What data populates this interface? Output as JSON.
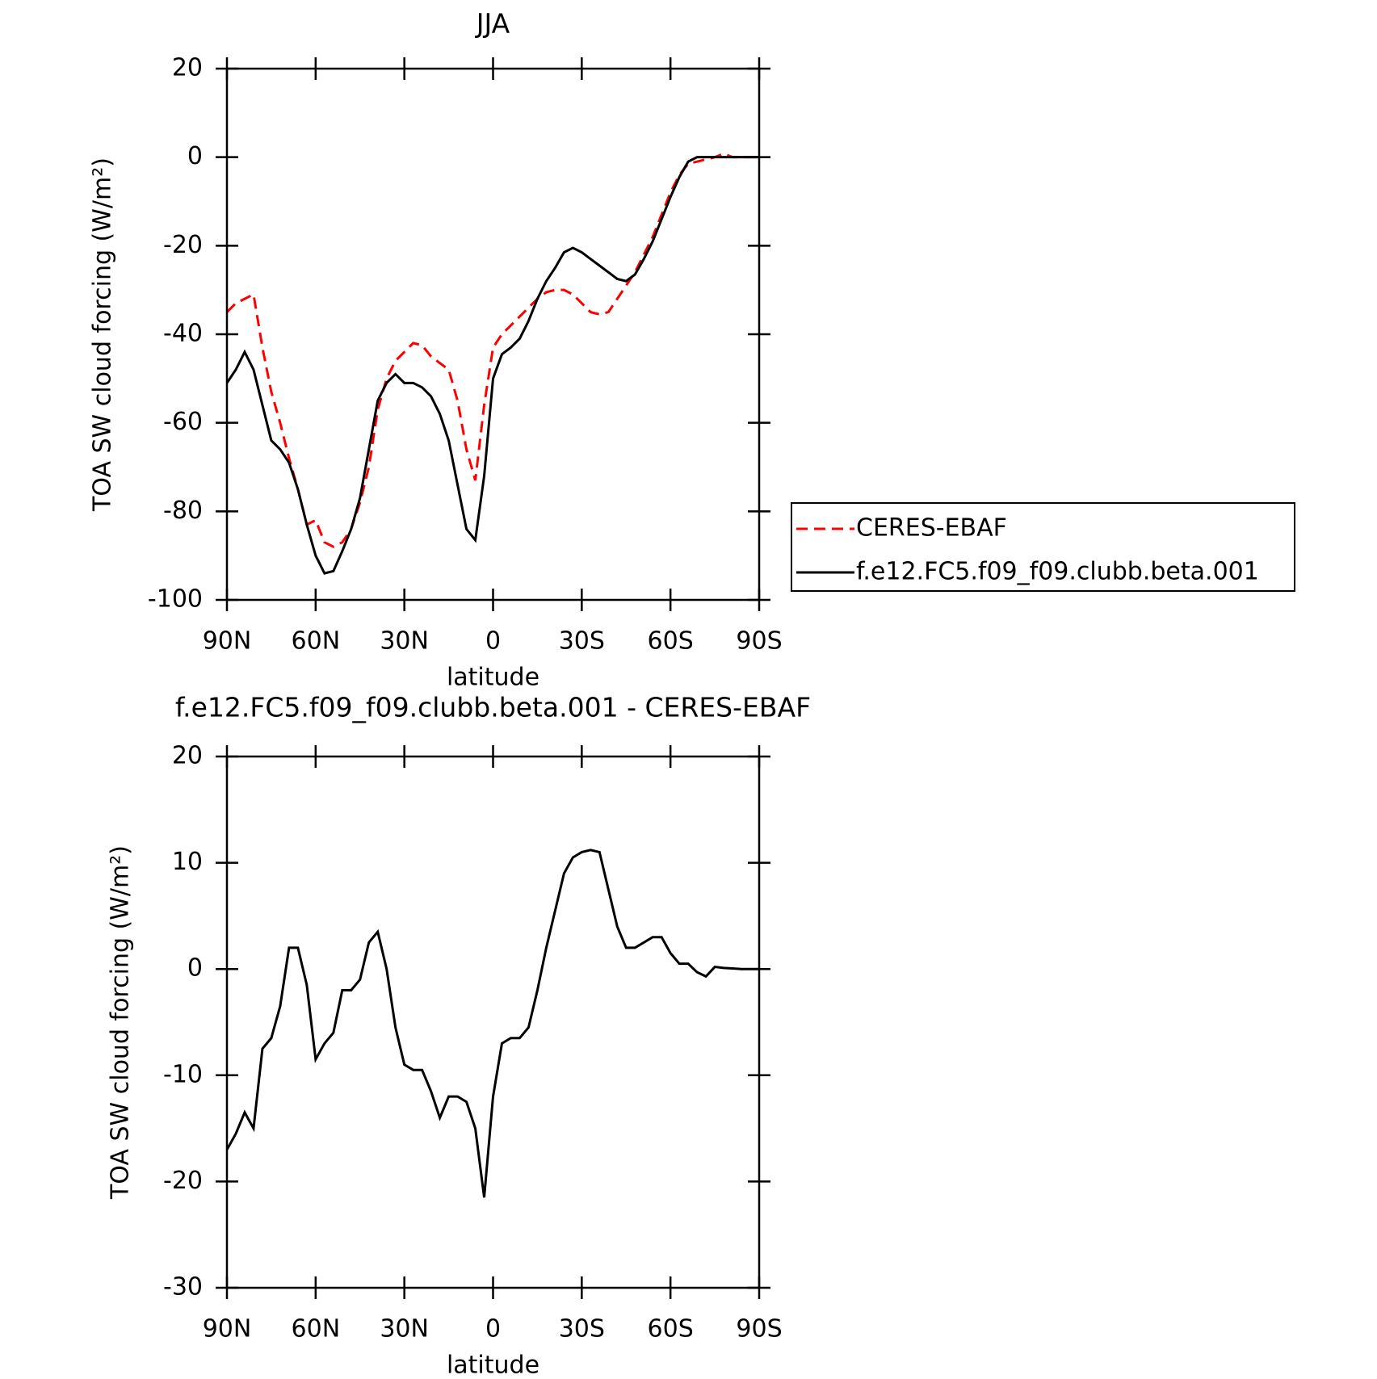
{
  "chart_data": [
    {
      "type": "line",
      "title": "JJA",
      "xlabel": "latitude",
      "ylabel": "TOA SW cloud forcing (W/m²)",
      "x": [
        90,
        87,
        84,
        81,
        78,
        75,
        72,
        69,
        66,
        63,
        60,
        57,
        54,
        51,
        48,
        45,
        42,
        39,
        36,
        33,
        30,
        27,
        24,
        21,
        18,
        15,
        12,
        9,
        6,
        3,
        0,
        -3,
        -6,
        -9,
        -12,
        -15,
        -18,
        -21,
        -24,
        -27,
        -30,
        -33,
        -36,
        -39,
        -42,
        -45,
        -48,
        -51,
        -54,
        -57,
        -60,
        -63,
        -66,
        -69,
        -72,
        -75,
        -78,
        -81,
        -84,
        -87,
        -90
      ],
      "series": [
        {
          "name": "CERES-EBAF",
          "color": "#ff0000",
          "style": "dashed",
          "values": [
            -35,
            -33,
            -32,
            -31,
            -43,
            -53,
            -60,
            -68,
            -75,
            -83,
            -82,
            -87,
            -88,
            -87,
            -84,
            -78,
            -70,
            -57,
            -50,
            -46,
            -44,
            -42,
            -42.5,
            -45,
            -46.5,
            -48,
            -55,
            -66,
            -73,
            -56,
            -43,
            -40,
            -38,
            -36,
            -34,
            -32,
            -30.5,
            -30,
            -30,
            -31,
            -33,
            -35,
            -35.5,
            -35,
            -32,
            -29,
            -26,
            -22,
            -18,
            -13,
            -8,
            -4,
            -1.5,
            -1,
            -0.5,
            0,
            0.8,
            0,
            0,
            0,
            0
          ]
        },
        {
          "name": "f.e12.FC5.f09_f09.clubb.beta.001",
          "color": "#000000",
          "style": "solid",
          "values": [
            -51,
            -48,
            -44,
            -48,
            -56,
            -64,
            -66,
            -69,
            -75,
            -83,
            -90,
            -94,
            -93.5,
            -89,
            -84,
            -77,
            -66,
            -55,
            -51,
            -49,
            -51,
            -51,
            -52,
            -54,
            -58,
            -64,
            -74,
            -84,
            -86.5,
            -72,
            -50,
            -44.5,
            -43,
            -41,
            -37,
            -32,
            -28,
            -25,
            -21.5,
            -20.5,
            -21.5,
            -23,
            -24.5,
            -26,
            -27.5,
            -28,
            -26.5,
            -23,
            -19,
            -14,
            -9,
            -4.5,
            -1,
            0,
            0,
            0,
            0,
            0,
            0,
            0,
            0
          ]
        }
      ],
      "xlim": [
        90,
        -90
      ],
      "xticks": [
        {
          "value": 90,
          "label": "90N"
        },
        {
          "value": 60,
          "label": "60N"
        },
        {
          "value": 30,
          "label": "30N"
        },
        0,
        {
          "value": -30,
          "label": "30S"
        },
        {
          "value": -60,
          "label": "60S"
        },
        {
          "value": -90,
          "label": "90S"
        }
      ],
      "ylim": [
        -100,
        20
      ],
      "yticks": [
        -100,
        -80,
        -60,
        -40,
        -20,
        0,
        20
      ],
      "legend": "right"
    },
    {
      "type": "line",
      "title": "f.e12.FC5.f09_f09.clubb.beta.001 - CERES-EBAF",
      "xlabel": "latitude",
      "ylabel": "TOA SW cloud forcing (W/m²)",
      "x": [
        90,
        87,
        84,
        81,
        78,
        75,
        72,
        69,
        66,
        63,
        60,
        57,
        54,
        51,
        48,
        45,
        42,
        39,
        36,
        33,
        30,
        27,
        24,
        21,
        18,
        15,
        12,
        9,
        6,
        3,
        0,
        -3,
        -6,
        -9,
        -12,
        -15,
        -18,
        -21,
        -24,
        -27,
        -30,
        -33,
        -36,
        -39,
        -42,
        -45,
        -48,
        -51,
        -54,
        -57,
        -60,
        -63,
        -66,
        -69,
        -72,
        -75,
        -78,
        -81,
        -84,
        -87,
        -90
      ],
      "series": [
        {
          "color": "#000000",
          "style": "solid",
          "values": [
            -17,
            -15.5,
            -13.5,
            -15,
            -7.5,
            -6.5,
            -3.5,
            2,
            2,
            -1.5,
            -8.5,
            -7,
            -6,
            -2,
            -2,
            -1,
            2.5,
            3.5,
            0,
            -5.5,
            -9,
            -9.5,
            -9.5,
            -11.5,
            -14,
            -12,
            -12,
            -12.5,
            -15,
            -21.5,
            -12,
            -7,
            -6.5,
            -6.5,
            -5.5,
            -2,
            2,
            5.5,
            9,
            10.5,
            11,
            11.2,
            11,
            7.5,
            4,
            2,
            2,
            2.5,
            3,
            3,
            1.5,
            0.5,
            0.5,
            -0.3,
            -0.7,
            0.2,
            0.1,
            0.05,
            0,
            0,
            0
          ]
        }
      ],
      "xlim": [
        90,
        -90
      ],
      "xticks": [
        {
          "value": 90,
          "label": "90N"
        },
        {
          "value": 60,
          "label": "60N"
        },
        {
          "value": 30,
          "label": "30N"
        },
        0,
        {
          "value": -30,
          "label": "30S"
        },
        {
          "value": -60,
          "label": "60S"
        },
        {
          "value": -90,
          "label": "90S"
        }
      ],
      "ylim": [
        -30,
        20
      ],
      "yticks": [
        -30,
        -20,
        -10,
        0,
        10,
        20
      ]
    }
  ]
}
